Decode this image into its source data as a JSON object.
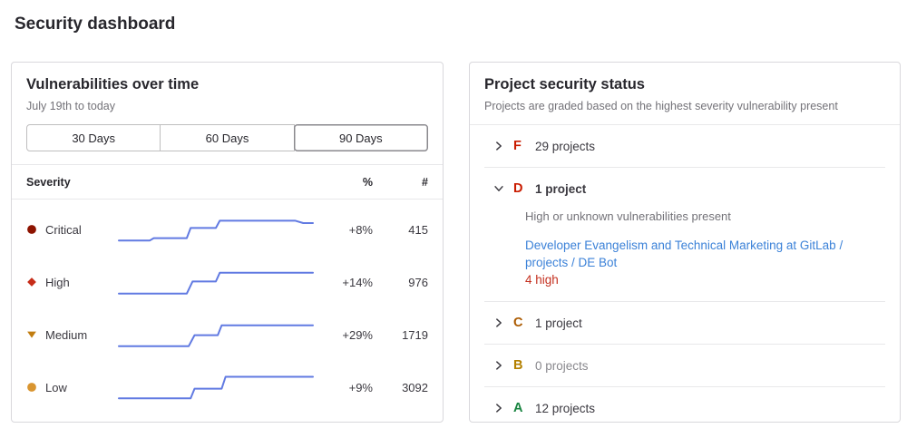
{
  "page": {
    "title": "Security dashboard"
  },
  "vulnerabilities_panel": {
    "title": "Vulnerabilities over time",
    "subtitle": "July 19th to today",
    "range_buttons": [
      {
        "label": "30 Days",
        "selected": false
      },
      {
        "label": "60 Days",
        "selected": false
      },
      {
        "label": "90 Days",
        "selected": true
      }
    ],
    "table": {
      "headers": {
        "severity": "Severity",
        "percent": "%",
        "count": "#"
      },
      "rows": [
        {
          "severity": "Critical",
          "icon": "severity-critical-icon",
          "icon_color": "#8d1300",
          "percent": "+8%",
          "count": "415"
        },
        {
          "severity": "High",
          "icon": "severity-high-icon",
          "icon_color": "#c62d19",
          "percent": "+14%",
          "count": "976"
        },
        {
          "severity": "Medium",
          "icon": "severity-medium-icon",
          "icon_color": "#c17d10",
          "percent": "+29%",
          "count": "1719"
        },
        {
          "severity": "Low",
          "icon": "severity-low-icon",
          "icon_color": "#d99530",
          "percent": "+9%",
          "count": "3092"
        }
      ]
    }
  },
  "chart_data": {
    "type": "line",
    "title": "Vulnerabilities over time",
    "subtitle": "July 19th to today",
    "x_range": "90 Days (July 19th to today)",
    "line_color": "#617ae2",
    "axes_shown": false,
    "note": "sparkline step lines, points normalized to 0-100 (y: 0 = top)",
    "series": [
      {
        "name": "Critical",
        "change_percent": "+8%",
        "current_count": 415,
        "points": [
          [
            0,
            88
          ],
          [
            16,
            88
          ],
          [
            18,
            80
          ],
          [
            35,
            80
          ],
          [
            37,
            45
          ],
          [
            50,
            45
          ],
          [
            52,
            20
          ],
          [
            91,
            20
          ],
          [
            95,
            28
          ],
          [
            100,
            28
          ]
        ]
      },
      {
        "name": "High",
        "change_percent": "+14%",
        "current_count": 976,
        "points": [
          [
            0,
            90
          ],
          [
            35,
            90
          ],
          [
            38,
            48
          ],
          [
            50,
            48
          ],
          [
            52,
            18
          ],
          [
            100,
            18
          ]
        ]
      },
      {
        "name": "Medium",
        "change_percent": "+29%",
        "current_count": 1719,
        "points": [
          [
            0,
            90
          ],
          [
            36,
            90
          ],
          [
            39,
            52
          ],
          [
            51,
            52
          ],
          [
            53,
            18
          ],
          [
            100,
            18
          ]
        ]
      },
      {
        "name": "Low",
        "change_percent": "+9%",
        "current_count": 3092,
        "points": [
          [
            0,
            88
          ],
          [
            37,
            88
          ],
          [
            39,
            55
          ],
          [
            53,
            55
          ],
          [
            55,
            14
          ],
          [
            100,
            14
          ]
        ]
      }
    ]
  },
  "project_status_panel": {
    "title": "Project security status",
    "subtitle": "Projects are graded based on the highest severity vulnerability present",
    "grades": [
      {
        "grade": "F",
        "color": "#c91c00",
        "label": "29 projects",
        "expanded": false,
        "muted": false
      },
      {
        "grade": "D",
        "color": "#c91c00",
        "label": "1 project",
        "expanded": true,
        "muted": false,
        "description": "High or unknown vulnerabilities present",
        "project": {
          "name": "Developer Evangelism and Technical Marketing at GitLab / projects / DE Bot",
          "finding": "4 high",
          "finding_color": "#c4301f"
        }
      },
      {
        "grade": "C",
        "color": "#ab5a00",
        "label": "1 project",
        "expanded": false,
        "muted": false
      },
      {
        "grade": "B",
        "color": "#b38000",
        "label": "0 projects",
        "expanded": false,
        "muted": true
      },
      {
        "grade": "A",
        "color": "#188440",
        "label": "12 projects",
        "expanded": false,
        "muted": false
      }
    ]
  }
}
